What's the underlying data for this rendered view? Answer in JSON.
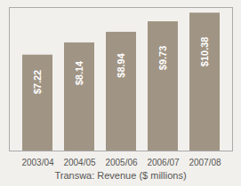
{
  "chart_data": {
    "type": "bar",
    "title": "Transwa: Revenue ($ millions)",
    "categories": [
      "2003/04",
      "2004/05",
      "2005/06",
      "2006/07",
      "2007/08"
    ],
    "values": [
      7.22,
      8.14,
      8.94,
      9.73,
      10.38
    ],
    "value_labels": [
      "$7.22",
      "$8.14",
      "$8.94",
      "$9.73",
      "$10.38"
    ],
    "color": "#a09484",
    "ylim": [
      0,
      10.8
    ],
    "data_labels": true,
    "tick_labels": "x",
    "grid": false
  }
}
